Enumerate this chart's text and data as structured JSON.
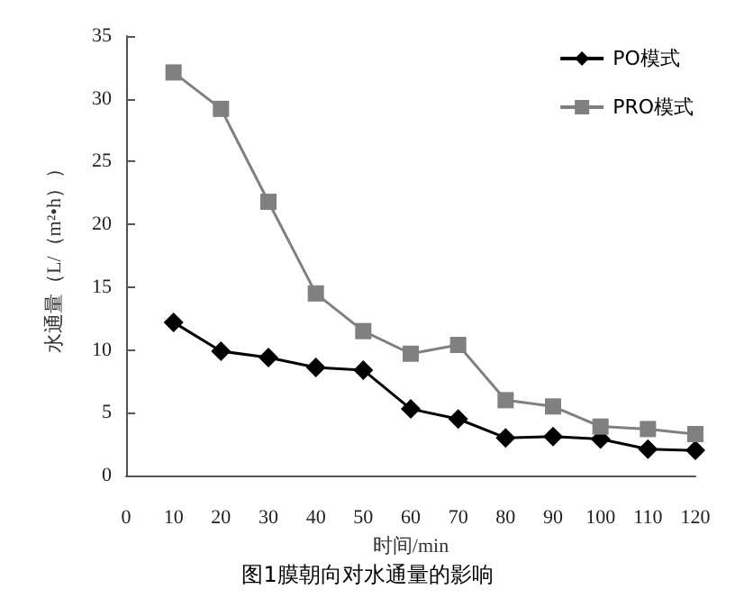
{
  "chart_data": {
    "type": "line",
    "title": "图1膜朝向对水通量的影响",
    "xlabel": "时间/min",
    "ylabel": "水通量（L/（m²•h））",
    "x": [
      10,
      20,
      30,
      40,
      50,
      60,
      70,
      80,
      90,
      100,
      110,
      120
    ],
    "series": [
      {
        "name": "PO模式",
        "color": "#000000",
        "marker": "diamond",
        "values": [
          12.2,
          9.9,
          9.4,
          8.6,
          8.4,
          5.3,
          4.5,
          3.0,
          3.1,
          2.9,
          2.1,
          2.0
        ]
      },
      {
        "name": "PRO模式",
        "color": "#808080",
        "marker": "square",
        "values": [
          32.1,
          29.2,
          21.8,
          14.5,
          11.5,
          9.7,
          10.4,
          6.0,
          5.5,
          3.9,
          3.7,
          3.3
        ]
      }
    ],
    "xlim": [
      0,
      120
    ],
    "xticks": [
      0,
      10,
      20,
      30,
      40,
      50,
      60,
      70,
      80,
      90,
      100,
      110,
      120
    ],
    "ylim": [
      0,
      35
    ],
    "yticks": [
      0,
      5,
      10,
      15,
      20,
      25,
      30,
      35
    ],
    "grid": false,
    "legend": "top right",
    "line_style": "solid"
  }
}
